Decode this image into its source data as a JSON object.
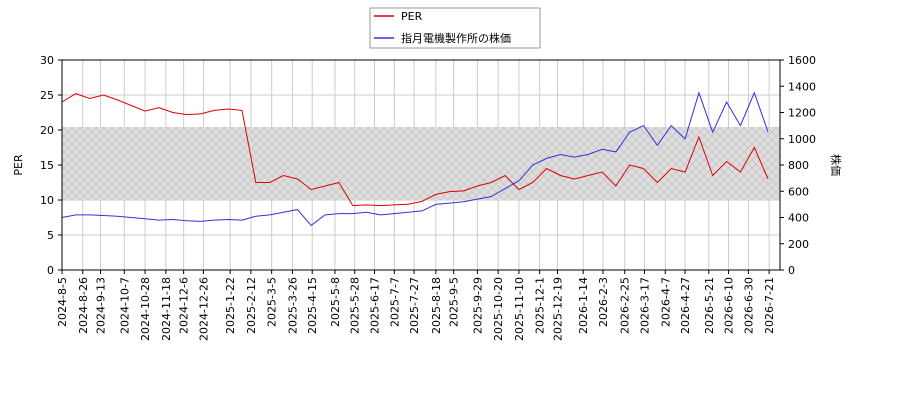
{
  "chart_data": {
    "type": "line",
    "x": [
      "2024-8-5",
      "2024-8-19",
      "2024-9-2",
      "2024-9-16",
      "2024-9-30",
      "2024-10-14",
      "2024-10-28",
      "2024-11-11",
      "2024-11-25",
      "2024-12-9",
      "2024-12-23",
      "2025-1-6",
      "2025-1-20",
      "2025-2-3",
      "2025-2-17",
      "2025-3-3",
      "2025-3-17",
      "2025-3-31",
      "2025-4-14",
      "2025-4-28",
      "2025-5-12",
      "2025-5-26",
      "2025-6-9",
      "2025-6-23",
      "2025-7-7",
      "2025-7-21",
      "2025-8-4",
      "2025-8-18",
      "2025-9-1",
      "2025-9-15",
      "2025-9-29",
      "2025-10-13",
      "2025-10-27",
      "2025-11-10",
      "2025-11-24",
      "2025-12-8",
      "2025-12-22",
      "2026-1-5",
      "2026-1-19",
      "2026-2-2",
      "2026-2-16",
      "2026-3-2",
      "2026-3-16",
      "2026-3-30",
      "2026-4-13",
      "2026-4-27",
      "2026-5-11",
      "2026-5-25",
      "2026-6-8",
      "2026-6-22",
      "2026-7-6",
      "2026-7-20"
    ],
    "series": [
      {
        "name": "PER",
        "color": "#dd0000",
        "values": [
          24,
          25.2,
          24.5,
          25,
          24.3,
          23.5,
          22.7,
          23.2,
          22.5,
          22.2,
          22.3,
          22.8,
          23,
          22.8,
          12.5,
          12.5,
          13.5,
          13,
          11.5,
          12,
          12.5,
          9.2,
          9.3,
          9.2,
          9.3,
          9.4,
          9.8,
          10.8,
          11.2,
          11.3,
          12,
          12.5,
          13.5,
          11.5,
          12.5,
          14.5,
          13.5,
          13,
          13.5,
          14,
          12,
          15,
          14.5,
          12.5,
          14.5,
          14,
          19,
          13.5,
          15.5,
          14,
          17.5,
          13
        ]
      },
      {
        "name": "指月電機製作所の株価",
        "color": "#3333dd",
        "axis": "y2",
        "values": [
          400,
          420,
          420,
          415,
          410,
          400,
          390,
          380,
          385,
          375,
          370,
          380,
          385,
          380,
          410,
          420,
          440,
          460,
          340,
          420,
          430,
          430,
          440,
          420,
          430,
          440,
          450,
          500,
          510,
          520,
          540,
          560,
          620,
          680,
          800,
          850,
          880,
          860,
          880,
          920,
          900,
          1050,
          1100,
          950,
          1100,
          1000,
          1350,
          1050,
          1280,
          1100,
          1350,
          1050
        ]
      }
    ],
    "xlim": [
      "2024-8-5",
      "2026-8-1"
    ],
    "xticks": [
      "2024-8-5",
      "2024-8-26",
      "2024-9-13",
      "2024-10-7",
      "2024-10-28",
      "2024-11-18",
      "2024-12-6",
      "2024-12-26",
      "2025-1-22",
      "2025-2-12",
      "2025-3-5",
      "2025-3-26",
      "2025-4-15",
      "2025-5-8",
      "2025-5-28",
      "2025-6-17",
      "2025-7-7",
      "2025-7-27",
      "2025-8-18",
      "2025-9-5",
      "2025-9-29",
      "2025-10-20",
      "2025-11-10",
      "2025-12-1",
      "2025-12-19",
      "2026-1-14",
      "2026-2-3",
      "2026-2-25",
      "2026-3-17",
      "2026-4-7",
      "2026-4-27",
      "2026-5-21",
      "2026-6-10",
      "2026-6-30",
      "2026-7-21"
    ],
    "ylim": [
      0,
      30
    ],
    "yticks": [
      0,
      5,
      10,
      15,
      20,
      25,
      30
    ],
    "y2lim": [
      0,
      1600
    ],
    "y2ticks": [
      0,
      200,
      400,
      600,
      800,
      1000,
      1200,
      1400,
      1600
    ],
    "ylabel": "PER",
    "y2label": "株価",
    "grid": true
  }
}
